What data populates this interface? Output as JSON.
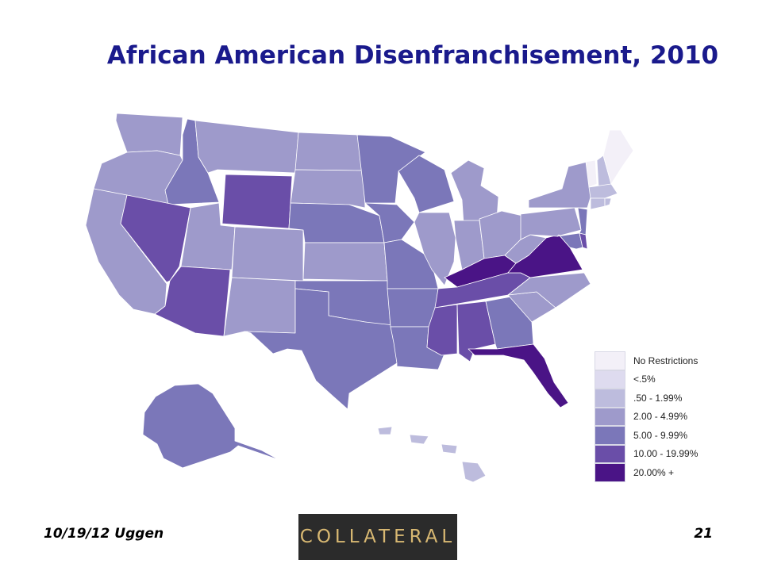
{
  "title": "African American Disenfranchisement, 2010",
  "legend": [
    {
      "label": "No Restrictions",
      "color": "#f3f0f8"
    },
    {
      "label": "<.5%",
      "color": "#dedbef"
    },
    {
      "label": ".50 - 1.99%",
      "color": "#bdbcdd"
    },
    {
      "label": "2.00 - 4.99%",
      "color": "#9e9acb"
    },
    {
      "label": "5.00 - 9.99%",
      "color": "#7b77b9"
    },
    {
      "label": "10.00 - 19.99%",
      "color": "#6a4ea8"
    },
    {
      "label": "20.00% +",
      "color": "#4a1486"
    }
  ],
  "footer": {
    "date_author": "10/19/12 Uggen",
    "page_number": "21",
    "logo_text": "COLLATERAL"
  }
}
